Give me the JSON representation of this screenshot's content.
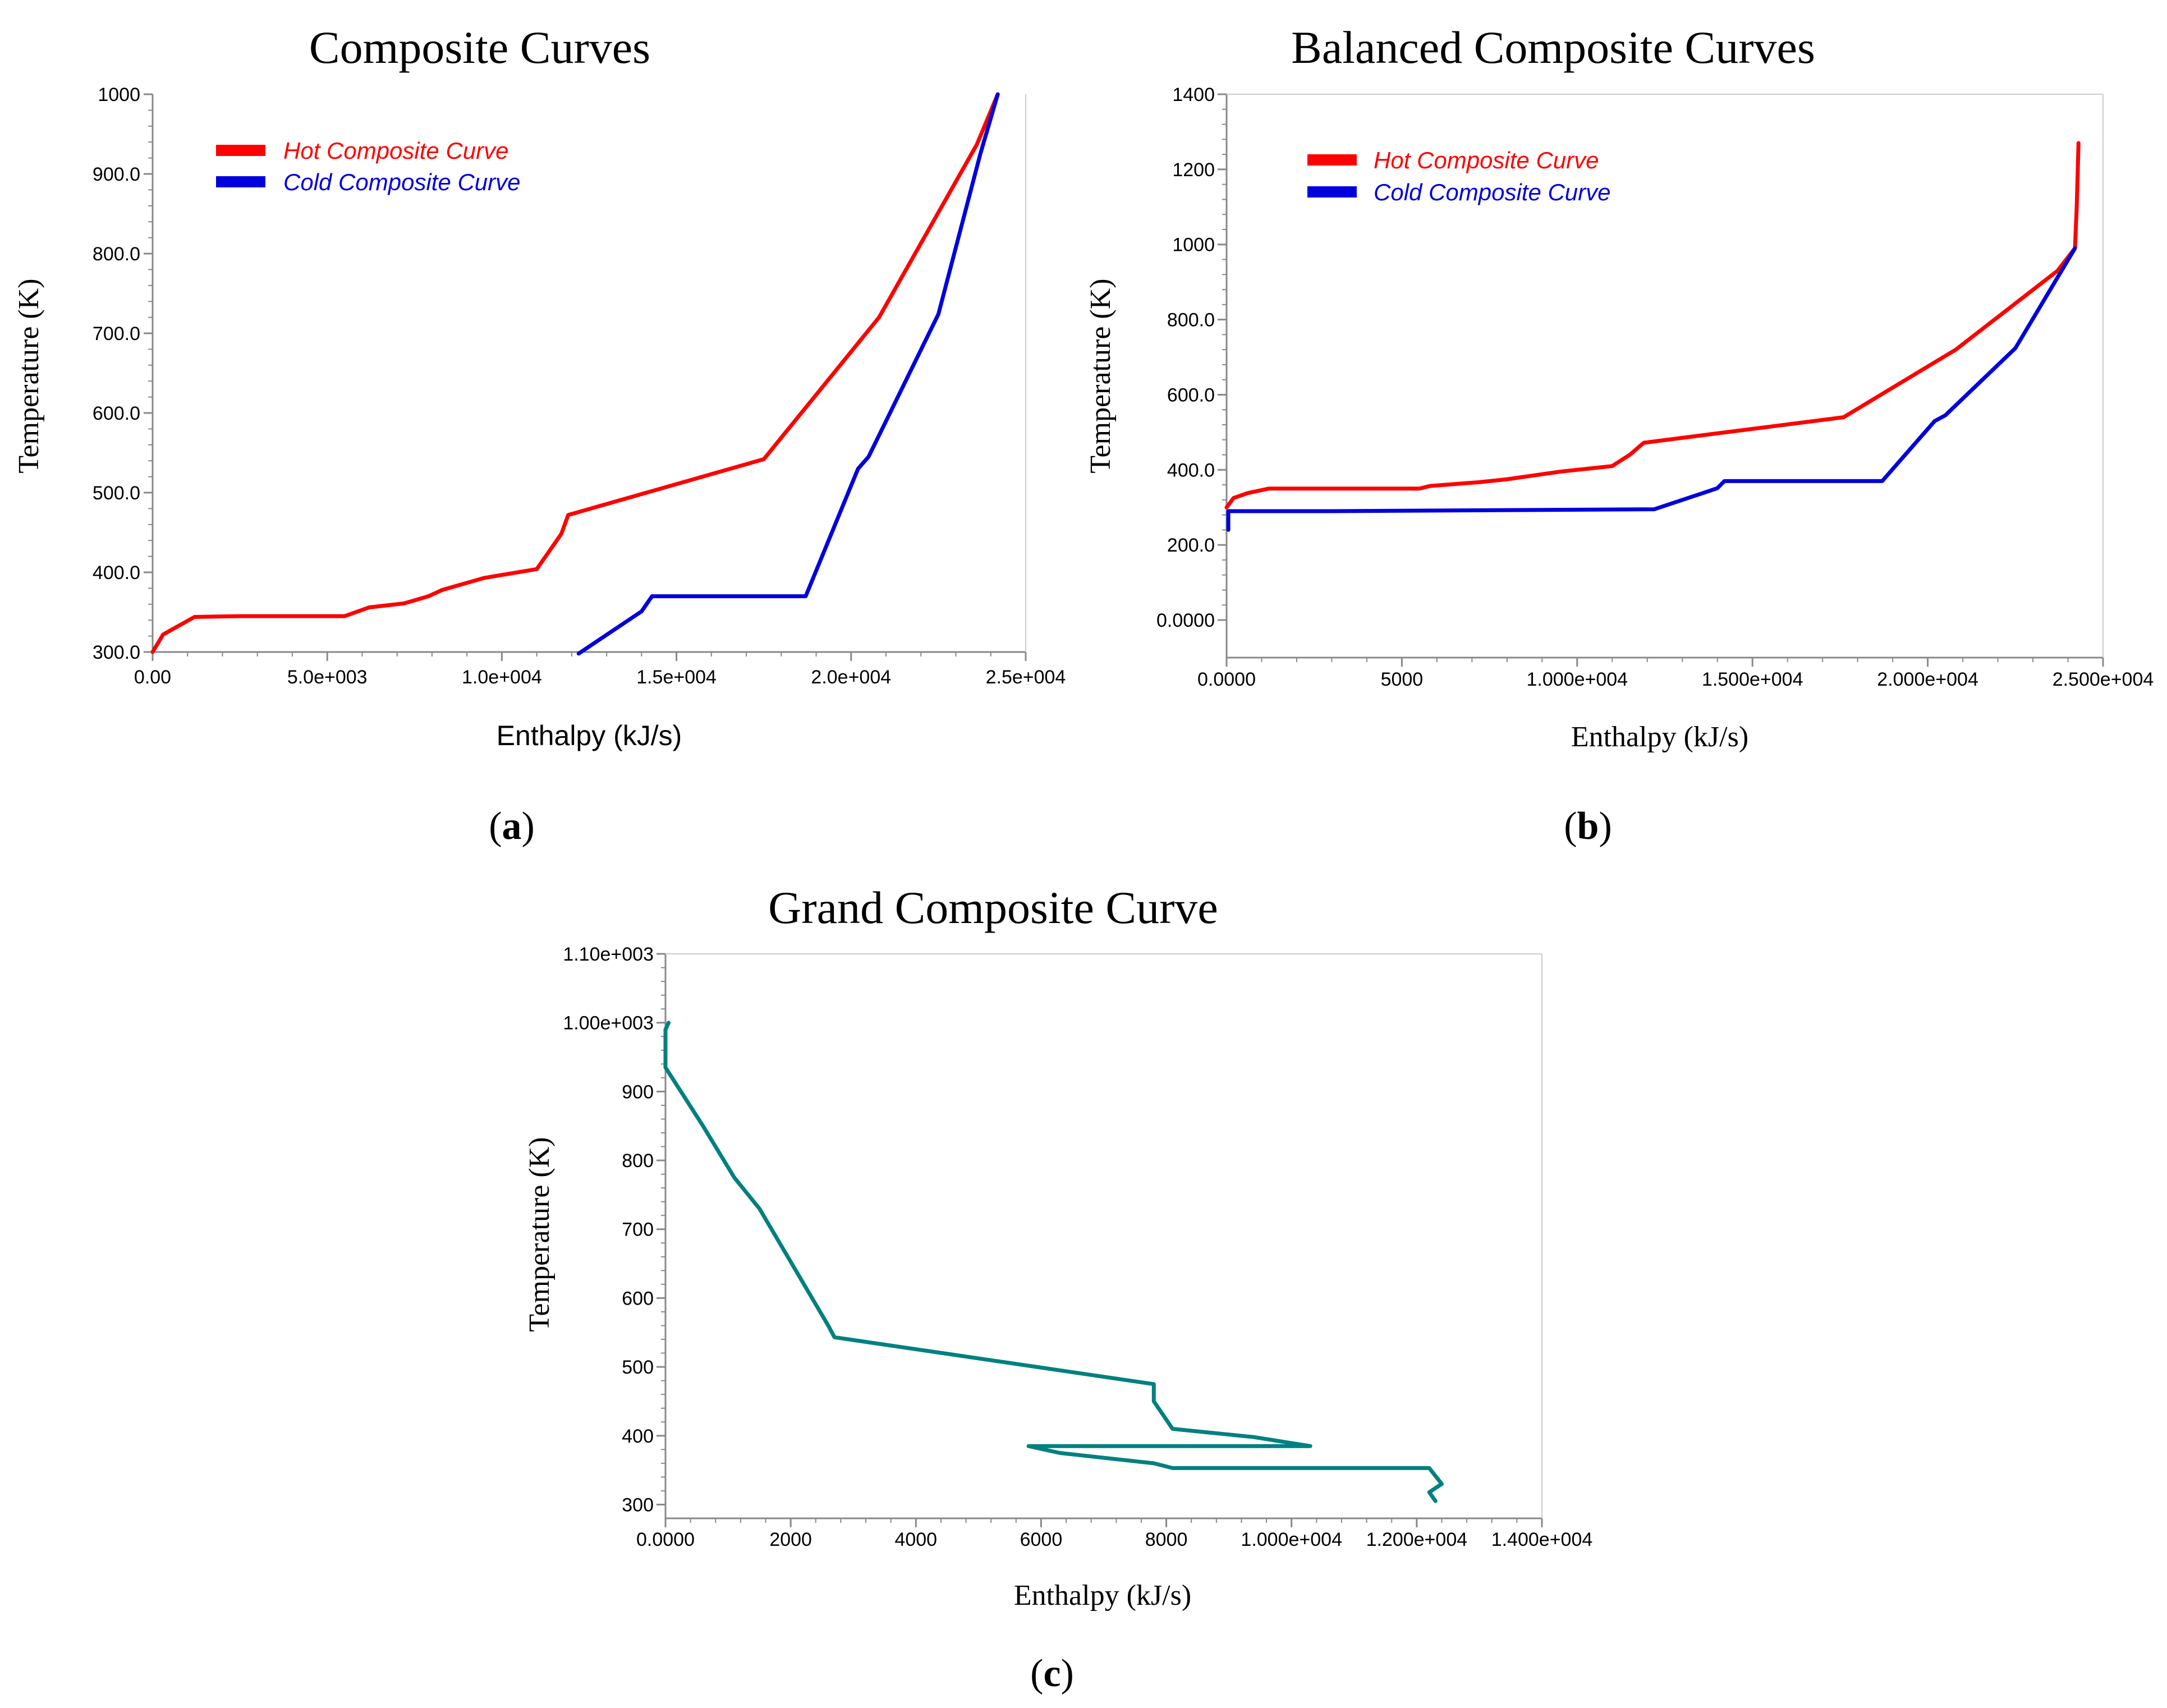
{
  "colors": {
    "hot": "#ff0000",
    "cold": "#0000dd",
    "grand": "#008080",
    "axis": "#888888"
  },
  "chart_data": [
    {
      "id": "a",
      "type": "line",
      "title": "Composite Curves",
      "caption": "a",
      "xlabel": "Enthalpy (kJ/s)",
      "ylabel": "Temperature (K)",
      "xlim": [
        0,
        25000
      ],
      "ylim": [
        300,
        1000
      ],
      "xticks": [
        {
          "v": 0,
          "label": "0.00"
        },
        {
          "v": 5000,
          "label": "5.0e+003"
        },
        {
          "v": 10000,
          "label": "1.0e+004"
        },
        {
          "v": 15000,
          "label": "1.5e+004"
        },
        {
          "v": 20000,
          "label": "2.0e+004"
        },
        {
          "v": 25000,
          "label": "2.5e+004"
        }
      ],
      "yticks": [
        {
          "v": 300,
          "label": "300.0"
        },
        {
          "v": 400,
          "label": "400.0"
        },
        {
          "v": 500,
          "label": "500.0"
        },
        {
          "v": 600,
          "label": "600.0"
        },
        {
          "v": 700,
          "label": "700.0"
        },
        {
          "v": 800,
          "label": "800.0"
        },
        {
          "v": 900,
          "label": "900.0"
        },
        {
          "v": 1000,
          "label": "1000"
        }
      ],
      "legend": [
        {
          "label": "Hot Composite Curve",
          "color": "hot"
        },
        {
          "label": "Cold Composite Curve",
          "color": "cold"
        }
      ],
      "series": [
        {
          "name": "Hot Composite Curve",
          "color": "hot",
          "points": [
            [
              0,
              300
            ],
            [
              300,
              322
            ],
            [
              1200,
              344
            ],
            [
              2500,
              345
            ],
            [
              5500,
              345
            ],
            [
              6200,
              356
            ],
            [
              7200,
              361
            ],
            [
              7900,
              370
            ],
            [
              8300,
              378
            ],
            [
              9500,
              393
            ],
            [
              11000,
              404
            ],
            [
              11700,
              448
            ],
            [
              11900,
              472
            ],
            [
              17500,
              542
            ],
            [
              20800,
              720
            ],
            [
              23600,
              937
            ],
            [
              24200,
              1000
            ]
          ]
        },
        {
          "name": "Cold Composite Curve",
          "color": "cold",
          "points": [
            [
              12200,
              298
            ],
            [
              14000,
              351
            ],
            [
              14300,
              370
            ],
            [
              18700,
              370
            ],
            [
              20200,
              530
            ],
            [
              20500,
              545
            ],
            [
              22500,
              724
            ],
            [
              23700,
              925
            ],
            [
              24200,
              1000
            ]
          ]
        }
      ]
    },
    {
      "id": "b",
      "type": "line",
      "title": "Balanced Composite Curves",
      "caption": "b",
      "xlabel": "Enthalpy (kJ/s)",
      "ylabel": "Temperature (K)",
      "xlim": [
        0,
        25000
      ],
      "ylim": [
        -100,
        1400
      ],
      "xticks": [
        {
          "v": 0,
          "label": "0.0000"
        },
        {
          "v": 5000,
          "label": "5000"
        },
        {
          "v": 10000,
          "label": "1.000e+004"
        },
        {
          "v": 15000,
          "label": "1.500e+004"
        },
        {
          "v": 20000,
          "label": "2.000e+004"
        },
        {
          "v": 25000,
          "label": "2.500e+004"
        }
      ],
      "yticks": [
        {
          "v": 0,
          "label": "0.0000"
        },
        {
          "v": 200,
          "label": "200.0"
        },
        {
          "v": 400,
          "label": "400.0"
        },
        {
          "v": 600,
          "label": "600.0"
        },
        {
          "v": 800,
          "label": "800.0"
        },
        {
          "v": 1000,
          "label": "1000"
        },
        {
          "v": 1200,
          "label": "1200"
        },
        {
          "v": 1400,
          "label": "1400"
        }
      ],
      "legend": [
        {
          "label": "Hot Composite Curve",
          "color": "hot"
        },
        {
          "label": "Cold Composite Curve",
          "color": "cold"
        }
      ],
      "series": [
        {
          "name": "Hot Composite Curve",
          "color": "hot",
          "points": [
            [
              0,
              300
            ],
            [
              200,
              325
            ],
            [
              600,
              338
            ],
            [
              1200,
              350
            ],
            [
              5500,
              350
            ],
            [
              5800,
              357
            ],
            [
              7200,
              367
            ],
            [
              8000,
              375
            ],
            [
              9500,
              395
            ],
            [
              11000,
              410
            ],
            [
              11500,
              440
            ],
            [
              11900,
              472
            ],
            [
              17600,
              540
            ],
            [
              20800,
              720
            ],
            [
              23700,
              930
            ],
            [
              24200,
              990
            ],
            [
              24250,
              1100
            ],
            [
              24300,
              1270
            ]
          ]
        },
        {
          "name": "Cold Composite Curve",
          "color": "cold",
          "points": [
            [
              50,
              240
            ],
            [
              50,
              290
            ],
            [
              3000,
              290
            ],
            [
              12200,
              295
            ],
            [
              14000,
              351
            ],
            [
              14200,
              370
            ],
            [
              18700,
              370
            ],
            [
              20200,
              530
            ],
            [
              20500,
              545
            ],
            [
              22500,
              724
            ],
            [
              24200,
              990
            ]
          ]
        }
      ]
    },
    {
      "id": "c",
      "type": "line",
      "title": "Grand Composite Curve",
      "caption": "c",
      "xlabel": "Enthalpy (kJ/s)",
      "ylabel": "Temperature (K)",
      "xlim": [
        0,
        14000
      ],
      "ylim": [
        280,
        1100
      ],
      "xticks": [
        {
          "v": 0,
          "label": "0.0000"
        },
        {
          "v": 2000,
          "label": "2000"
        },
        {
          "v": 4000,
          "label": "4000"
        },
        {
          "v": 6000,
          "label": "6000"
        },
        {
          "v": 8000,
          "label": "8000"
        },
        {
          "v": 10000,
          "label": "1.000e+004"
        },
        {
          "v": 12000,
          "label": "1.200e+004"
        },
        {
          "v": 14000,
          "label": "1.400e+004"
        }
      ],
      "yticks": [
        {
          "v": 300,
          "label": "300"
        },
        {
          "v": 400,
          "label": "400"
        },
        {
          "v": 500,
          "label": "500"
        },
        {
          "v": 600,
          "label": "600"
        },
        {
          "v": 700,
          "label": "700"
        },
        {
          "v": 800,
          "label": "800"
        },
        {
          "v": 900,
          "label": "900"
        },
        {
          "v": 1000,
          "label": "1.00e+003"
        },
        {
          "v": 1100,
          "label": "1.10e+003"
        }
      ],
      "legend": [],
      "series": [
        {
          "name": "",
          "color": "grand",
          "points": [
            [
              50,
              1000
            ],
            [
              0,
              990
            ],
            [
              0,
              935
            ],
            [
              600,
              850
            ],
            [
              1100,
              775
            ],
            [
              1500,
              730
            ],
            [
              2600,
              560
            ],
            [
              2700,
              543
            ],
            [
              7800,
              475
            ],
            [
              7800,
              450
            ],
            [
              8100,
              410
            ],
            [
              9400,
              398
            ],
            [
              10300,
              385
            ],
            [
              5800,
              385
            ],
            [
              6300,
              375
            ],
            [
              7800,
              360
            ],
            [
              8100,
              353
            ],
            [
              12200,
              353
            ],
            [
              12400,
              330
            ],
            [
              12200,
              318
            ],
            [
              12300,
              305
            ]
          ]
        }
      ]
    }
  ]
}
